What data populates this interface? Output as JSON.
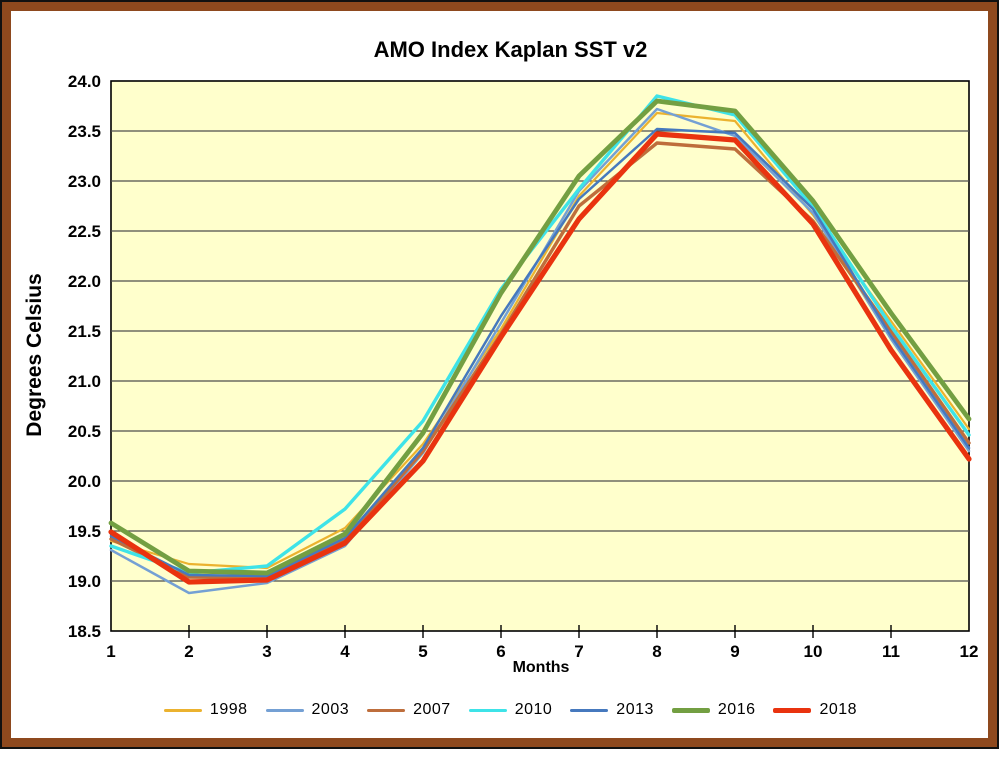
{
  "colors": {
    "frame_outer": "#111111",
    "frame_border": "#8E491E",
    "plot_background": "#FFFFCC",
    "gridline": "#4D4D4D",
    "axis_line": "#000000"
  },
  "chart_data": {
    "type": "line",
    "title": "AMO Index Kaplan SST v2",
    "xlabel": "Months",
    "ylabel": "Degrees Celsius",
    "x": [
      1,
      2,
      3,
      4,
      5,
      6,
      7,
      8,
      9,
      10,
      11,
      12
    ],
    "ylim": [
      18.5,
      24.0
    ],
    "ytick_step": 0.5,
    "grid": true,
    "legend_position": "bottom",
    "series": [
      {
        "name": "1998",
        "color": "#EBB22F",
        "width": 2.2,
        "values": [
          19.4,
          19.17,
          19.13,
          19.53,
          20.37,
          21.52,
          22.85,
          23.68,
          23.6,
          22.66,
          21.6,
          20.52
        ]
      },
      {
        "name": "2003",
        "color": "#74A0D4",
        "width": 2.5,
        "values": [
          19.31,
          18.88,
          18.98,
          19.35,
          20.28,
          21.58,
          22.9,
          23.72,
          23.45,
          22.68,
          21.42,
          20.3
        ]
      },
      {
        "name": "2007",
        "color": "#BE6E3C",
        "width": 3.4,
        "values": [
          19.42,
          19.04,
          19.03,
          19.4,
          20.3,
          21.47,
          22.75,
          23.38,
          23.32,
          22.6,
          21.5,
          20.38
        ]
      },
      {
        "name": "2010",
        "color": "#3EE3E8",
        "width": 3.4,
        "values": [
          19.35,
          19.08,
          19.15,
          19.72,
          20.6,
          21.92,
          22.92,
          23.85,
          23.66,
          22.74,
          21.55,
          20.46
        ]
      },
      {
        "name": "2013",
        "color": "#4679BE",
        "width": 2.5,
        "values": [
          19.45,
          19.06,
          19.05,
          19.43,
          20.33,
          21.65,
          22.82,
          23.52,
          23.48,
          22.72,
          21.45,
          20.33
        ]
      },
      {
        "name": "2016",
        "color": "#739F42",
        "width": 4.8,
        "values": [
          19.58,
          19.1,
          19.08,
          19.47,
          20.48,
          21.88,
          23.05,
          23.8,
          23.7,
          22.8,
          21.68,
          20.62
        ]
      },
      {
        "name": "2018",
        "color": "#E9330F",
        "width": 5.2,
        "values": [
          19.49,
          18.99,
          19.01,
          19.38,
          20.2,
          21.44,
          22.62,
          23.47,
          23.41,
          22.57,
          21.31,
          20.22
        ]
      }
    ]
  }
}
